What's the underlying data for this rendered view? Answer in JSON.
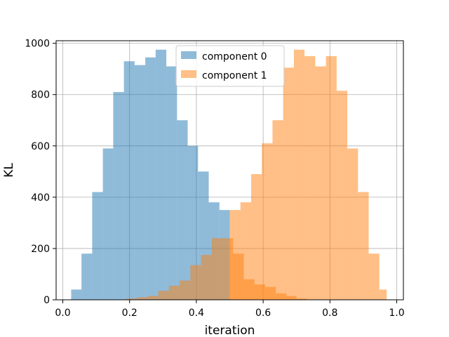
{
  "chart_data": {
    "type": "bar",
    "subtype": "overlapping histogram",
    "xlabel": "iteration",
    "ylabel": "KL",
    "xlim": [
      -0.02,
      1.02
    ],
    "ylim": [
      0,
      1010
    ],
    "x_ticks": [
      0.0,
      0.2,
      0.4,
      0.6,
      0.8,
      1.0
    ],
    "x_tick_labels": [
      "0.0",
      "0.2",
      "0.4",
      "0.6",
      "0.8",
      "1.0"
    ],
    "y_ticks": [
      0,
      200,
      400,
      600,
      800,
      1000
    ],
    "y_tick_labels": [
      "0",
      "200",
      "400",
      "600",
      "800",
      "1000"
    ],
    "grid": true,
    "legend_position": "upper center",
    "bar_opacity": 0.5,
    "series": [
      {
        "name": "component 0",
        "color": "#1f77b4",
        "bin_edges": [
          0.025,
          0.056,
          0.088,
          0.12,
          0.151,
          0.183,
          0.215,
          0.247,
          0.278,
          0.31,
          0.342,
          0.374,
          0.405,
          0.437,
          0.469,
          0.5
        ],
        "values": [
          40,
          180,
          420,
          590,
          810,
          930,
          915,
          945,
          975,
          910,
          700,
          600,
          500,
          380,
          350
        ]
      },
      {
        "name": "component 1",
        "color": "#ff7f0e",
        "bin_edges": [
          0.19,
          0.222,
          0.254,
          0.286,
          0.318,
          0.35,
          0.382,
          0.414,
          0.446,
          0.478,
          0.51,
          0.542,
          0.574,
          0.606,
          0.638,
          0.67,
          0.7,
          0.732,
          0.764,
          0.796,
          0.828,
          0.86,
          0.892,
          0.924,
          0.956,
          0.97
        ],
        "values": [
          5,
          10,
          15,
          35,
          55,
          75,
          135,
          175,
          240,
          240,
          180,
          80,
          60,
          50,
          25,
          15,
          5,
          0,
          0,
          0,
          0,
          0,
          0,
          0,
          0
        ],
        "values_right": {
          "bin_edges": [
            0.5,
            0.532,
            0.564,
            0.596,
            0.628,
            0.66,
            0.692,
            0.724,
            0.756,
            0.788,
            0.82,
            0.852,
            0.884,
            0.916,
            0.948,
            0.97
          ],
          "values": [
            350,
            380,
            490,
            610,
            700,
            905,
            975,
            950,
            910,
            950,
            815,
            590,
            420,
            180,
            40
          ]
        }
      }
    ]
  }
}
